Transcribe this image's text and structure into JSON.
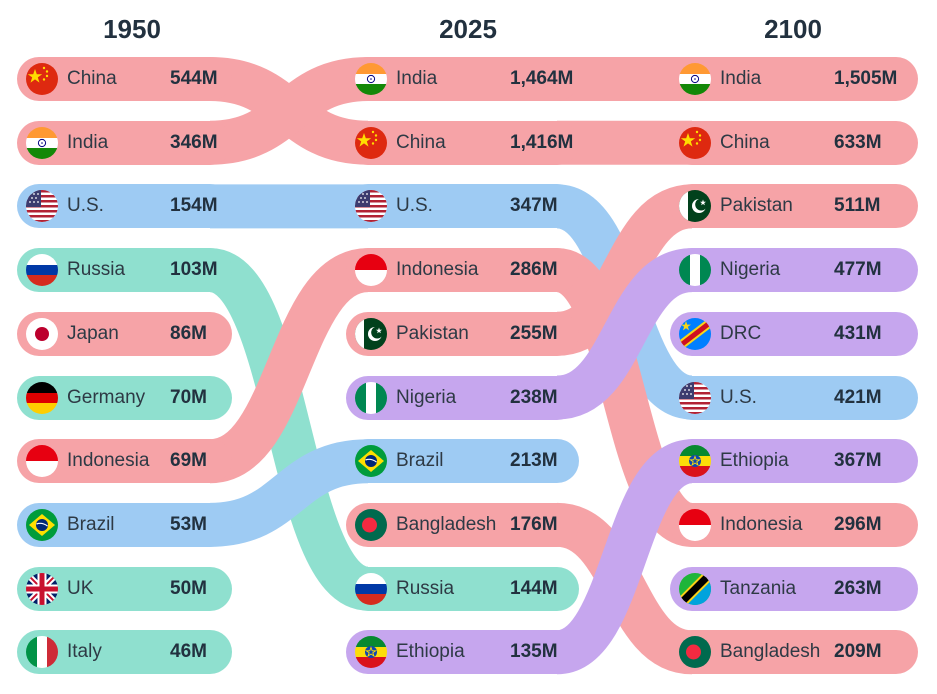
{
  "chart_data": {
    "type": "table",
    "title": "",
    "years": [
      "1950",
      "2025",
      "2100"
    ],
    "columns": [
      {
        "year": "1950",
        "rows": [
          {
            "country": "China",
            "value": "544M",
            "group": "asia",
            "flag": "cn"
          },
          {
            "country": "India",
            "value": "346M",
            "group": "asia",
            "flag": "in"
          },
          {
            "country": "U.S.",
            "value": "154M",
            "group": "americas",
            "flag": "us"
          },
          {
            "country": "Russia",
            "value": "103M",
            "group": "europe",
            "flag": "ru"
          },
          {
            "country": "Japan",
            "value": "86M",
            "group": "asia",
            "flag": "jp"
          },
          {
            "country": "Germany",
            "value": "70M",
            "group": "europe",
            "flag": "de"
          },
          {
            "country": "Indonesia",
            "value": "69M",
            "group": "asia",
            "flag": "id"
          },
          {
            "country": "Brazil",
            "value": "53M",
            "group": "americas",
            "flag": "br"
          },
          {
            "country": "UK",
            "value": "50M",
            "group": "europe",
            "flag": "gb"
          },
          {
            "country": "Italy",
            "value": "46M",
            "group": "europe",
            "flag": "it"
          }
        ]
      },
      {
        "year": "2025",
        "rows": [
          {
            "country": "India",
            "value": "1,464M",
            "group": "asia",
            "flag": "in"
          },
          {
            "country": "China",
            "value": "1,416M",
            "group": "asia",
            "flag": "cn"
          },
          {
            "country": "U.S.",
            "value": "347M",
            "group": "americas",
            "flag": "us"
          },
          {
            "country": "Indonesia",
            "value": "286M",
            "group": "asia",
            "flag": "id"
          },
          {
            "country": "Pakistan",
            "value": "255M",
            "group": "asia",
            "flag": "pk"
          },
          {
            "country": "Nigeria",
            "value": "238M",
            "group": "africa",
            "flag": "ng"
          },
          {
            "country": "Brazil",
            "value": "213M",
            "group": "americas",
            "flag": "br"
          },
          {
            "country": "Bangladesh",
            "value": "176M",
            "group": "asia",
            "flag": "bd"
          },
          {
            "country": "Russia",
            "value": "144M",
            "group": "europe",
            "flag": "ru"
          },
          {
            "country": "Ethiopia",
            "value": "135M",
            "group": "africa",
            "flag": "et"
          }
        ]
      },
      {
        "year": "2100",
        "rows": [
          {
            "country": "India",
            "value": "1,505M",
            "group": "asia",
            "flag": "in"
          },
          {
            "country": "China",
            "value": "633M",
            "group": "asia",
            "flag": "cn"
          },
          {
            "country": "Pakistan",
            "value": "511M",
            "group": "asia",
            "flag": "pk"
          },
          {
            "country": "Nigeria",
            "value": "477M",
            "group": "africa",
            "flag": "ng"
          },
          {
            "country": "DRC",
            "value": "431M",
            "group": "africa",
            "flag": "cd"
          },
          {
            "country": "U.S.",
            "value": "421M",
            "group": "americas",
            "flag": "us"
          },
          {
            "country": "Ethiopia",
            "value": "367M",
            "group": "africa",
            "flag": "et"
          },
          {
            "country": "Indonesia",
            "value": "296M",
            "group": "asia",
            "flag": "id"
          },
          {
            "country": "Tanzania",
            "value": "263M",
            "group": "africa",
            "flag": "tz"
          },
          {
            "country": "Bangladesh",
            "value": "209M",
            "group": "asia",
            "flag": "bd"
          }
        ]
      }
    ]
  },
  "colors": {
    "asia": "#f6a3a7",
    "americas": "#9ecbf3",
    "europe": "#8fe0cf",
    "africa": "#c6a6ee",
    "text": "#22313f",
    "background": "#ffffff"
  }
}
